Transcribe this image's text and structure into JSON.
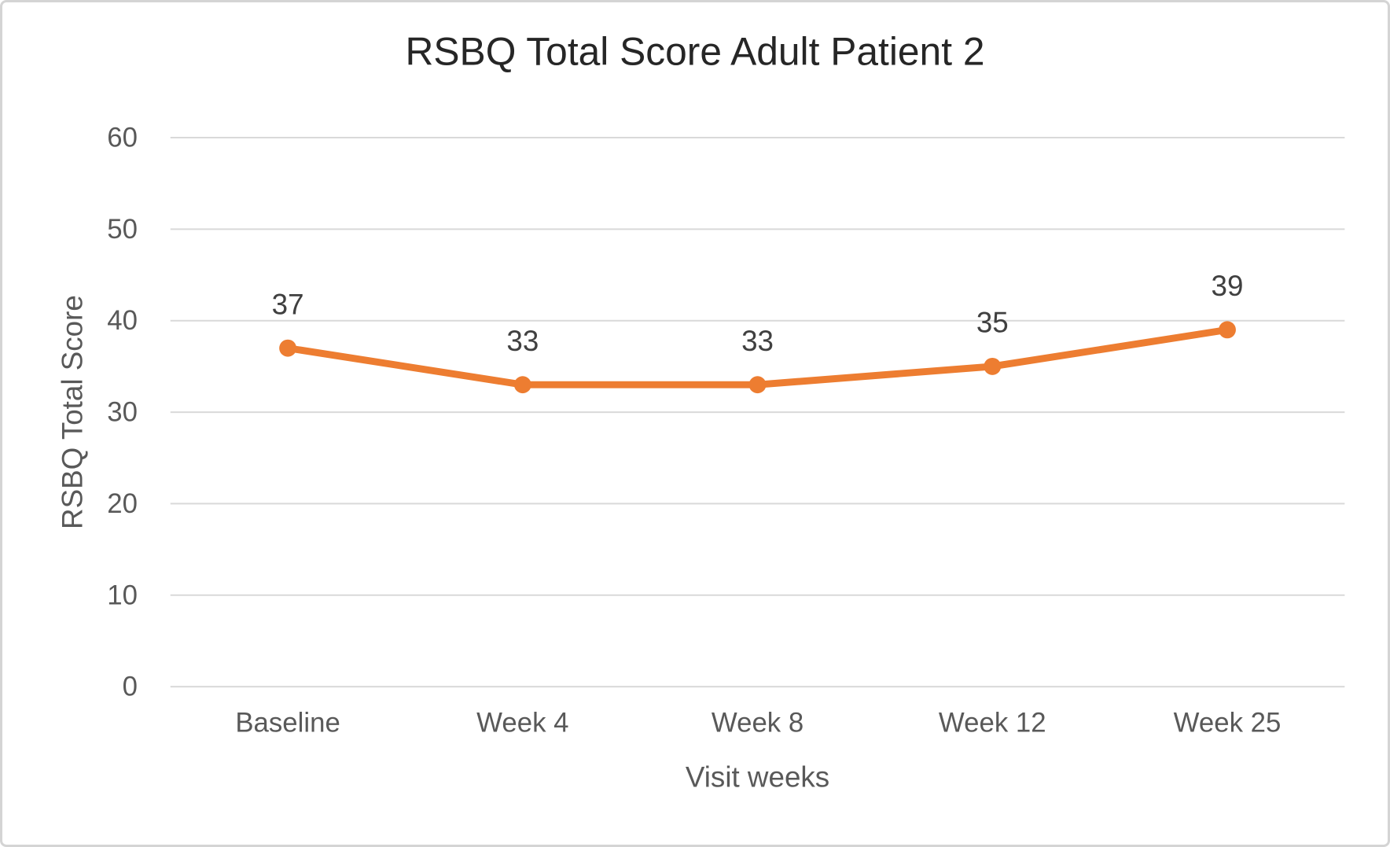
{
  "chart_data": {
    "type": "line",
    "title": "RSBQ Total Score Adult Patient 2",
    "xlabel": "Visit weeks",
    "ylabel": "RSBQ Total Score",
    "categories": [
      "Baseline",
      "Week 4",
      "Week 8",
      "Week 12",
      "Week 25"
    ],
    "series": [
      {
        "name": "RSBQ Total Score",
        "values": [
          37,
          33,
          33,
          35,
          39
        ],
        "data_labels": [
          "37",
          "33",
          "33",
          "35",
          "39"
        ]
      }
    ],
    "ylim": [
      0,
      60
    ],
    "ytick_step": 10,
    "ytick_labels": [
      "0",
      "10",
      "20",
      "30",
      "40",
      "50",
      "60"
    ],
    "grid": true,
    "legend": false,
    "colors": {
      "line": "#ED7D31",
      "marker": "#ED7D31",
      "gridline": "#d9d9d9",
      "axis_text": "#595959",
      "data_label_text": "#404040",
      "title_text": "#262626",
      "background": "#ffffff",
      "frame_border": "#d4d4d4"
    }
  }
}
